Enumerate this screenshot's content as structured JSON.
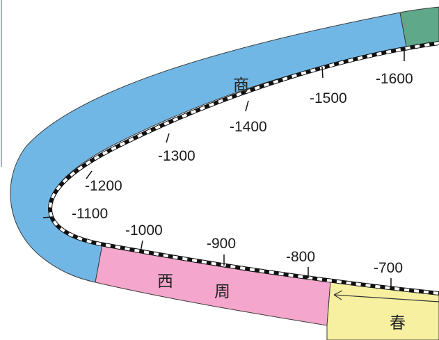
{
  "timeline": {
    "eras": [
      {
        "id": "shang",
        "label": "商",
        "color": "#70b7e6"
      },
      {
        "id": "western-zhou",
        "label_1": "西",
        "label_2": "周",
        "color": "#f4a6cc"
      },
      {
        "id": "spring-autumn",
        "label": "春",
        "color": "#f6f0a0"
      },
      {
        "id": "earlier",
        "color": "#5fa88a"
      }
    ],
    "years": [
      "-1600",
      "-1500",
      "-1400",
      "-1300",
      "-1200",
      "-1100",
      "-1000",
      "-900",
      "-800",
      "-700"
    ],
    "colors": {
      "outline": "#3a3a3a",
      "track_black": "#111111",
      "track_white": "#ffffff",
      "frame_line": "#8a8ad0"
    }
  }
}
